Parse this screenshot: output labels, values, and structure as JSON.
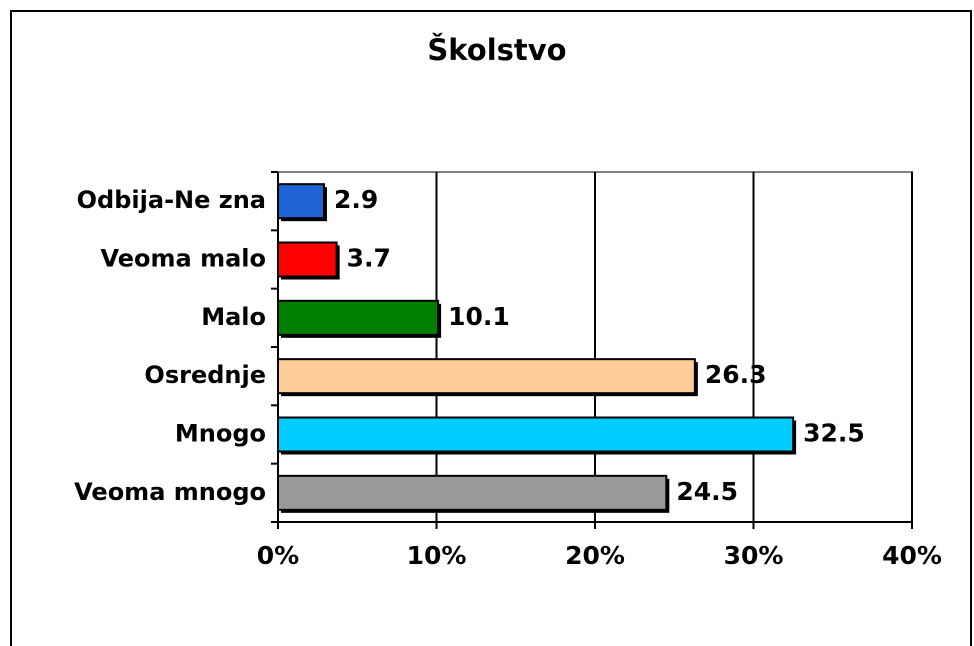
{
  "chart_data": {
    "type": "bar",
    "orientation": "horizontal",
    "title": "Školstvo",
    "categories": [
      "Odbija-Ne zna",
      "Veoma malo",
      "Malo",
      "Osrednje",
      "Mnogo",
      "Veoma mnogo"
    ],
    "values": [
      2.9,
      3.7,
      10.1,
      26.3,
      32.5,
      24.5
    ],
    "colors": [
      "#1f63d4",
      "#ff0000",
      "#008000",
      "#ffcc99",
      "#00ccff",
      "#999999"
    ],
    "xlim": [
      0,
      40
    ],
    "xticks": [
      {
        "value": 0,
        "label": "0%"
      },
      {
        "value": 10,
        "label": "10%"
      },
      {
        "value": 20,
        "label": "20%"
      },
      {
        "value": 30,
        "label": "30%"
      },
      {
        "value": 40,
        "label": "40%"
      }
    ],
    "grid": true
  }
}
